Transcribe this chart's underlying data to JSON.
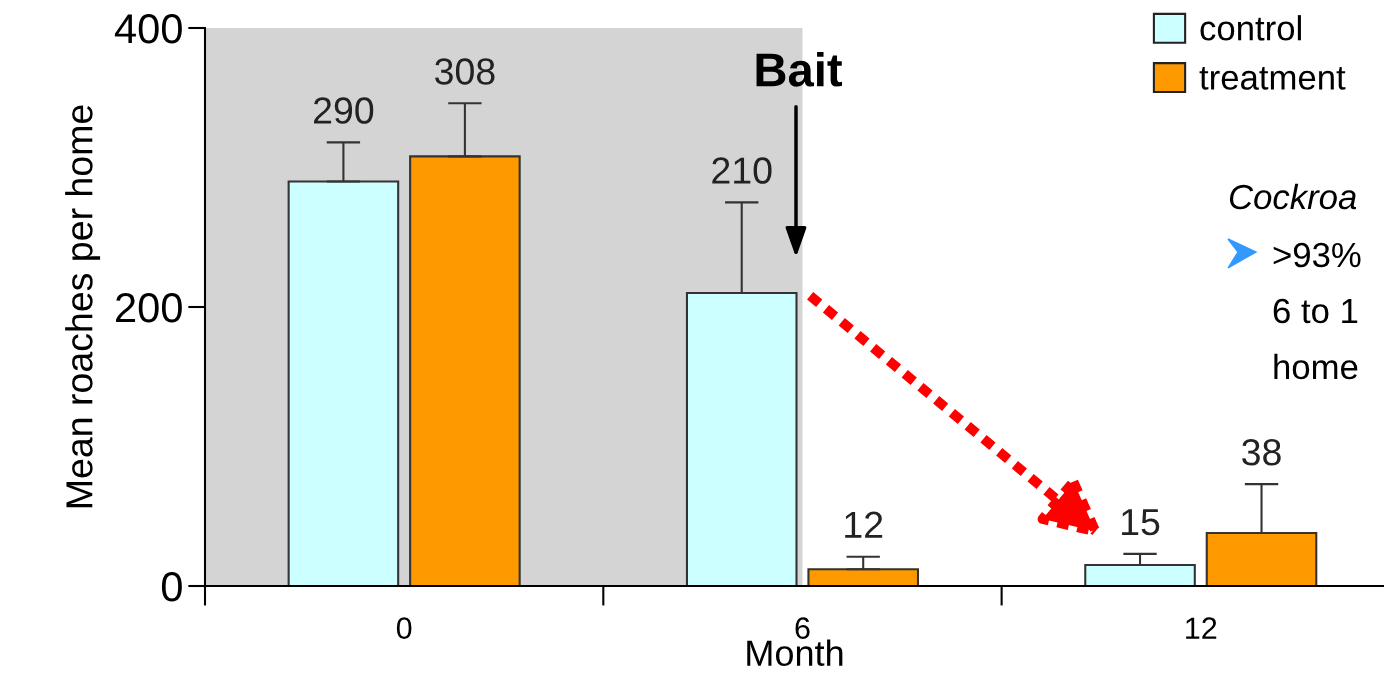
{
  "chart_data": {
    "type": "bar",
    "xlabel": "Month",
    "ylabel": "Mean roaches per home",
    "categories": [
      "0",
      "6",
      "12"
    ],
    "series": [
      {
        "name": "control",
        "color": "#ccffff",
        "values": [
          290,
          210,
          15
        ],
        "errors": [
          [
            290,
            318
          ],
          [
            210,
            275
          ],
          [
            15,
            23
          ]
        ]
      },
      {
        "name": "treatment",
        "color": "#ff9900",
        "values": [
          308,
          12,
          38
        ],
        "errors": [
          [
            308,
            346
          ],
          [
            12,
            21
          ],
          [
            38,
            73
          ]
        ]
      }
    ],
    "ylim": [
      0,
      400
    ],
    "yticks": [
      0,
      200,
      400
    ],
    "data_labels": true,
    "legend": "top right",
    "grid": false,
    "bands": [
      {
        "axis": "x",
        "from": "0",
        "to": "6",
        "color": "#d4d4d4"
      }
    ],
    "annotations": [
      "Bait",
      "Cockroa",
      ">93%",
      "6 to 1",
      "home"
    ]
  }
}
